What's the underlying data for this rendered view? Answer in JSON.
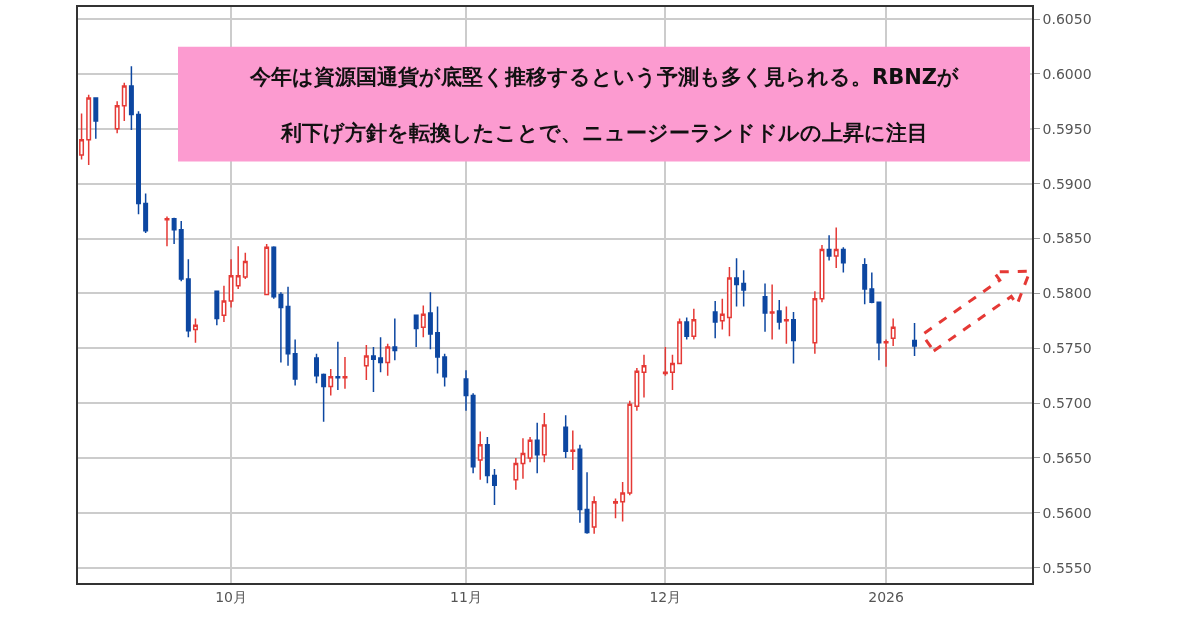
{
  "chart_data": {
    "type": "candlestick",
    "x": [
      "2025-09-10",
      "2025-09-11",
      "2025-09-12",
      "2025-09-15",
      "2025-09-16",
      "2025-09-17",
      "2025-09-18",
      "2025-09-19",
      "2025-09-22",
      "2025-09-23",
      "2025-09-24",
      "2025-09-25",
      "2025-09-26",
      "2025-09-29",
      "2025-09-30",
      "2025-10-01",
      "2025-10-02",
      "2025-10-03",
      "2025-10-06",
      "2025-10-07",
      "2025-10-08",
      "2025-10-09",
      "2025-10-10",
      "2025-10-13",
      "2025-10-14",
      "2025-10-15",
      "2025-10-16",
      "2025-10-17",
      "2025-10-20",
      "2025-10-21",
      "2025-10-22",
      "2025-10-23",
      "2025-10-24",
      "2025-10-27",
      "2025-10-28",
      "2025-10-29",
      "2025-10-30",
      "2025-10-31",
      "2025-11-03",
      "2025-11-04",
      "2025-11-05",
      "2025-11-06",
      "2025-11-07",
      "2025-11-10",
      "2025-11-11",
      "2025-11-12",
      "2025-11-13",
      "2025-11-14",
      "2025-11-17",
      "2025-11-18",
      "2025-11-19",
      "2025-11-20",
      "2025-11-21",
      "2025-11-24",
      "2025-11-25",
      "2025-11-26",
      "2025-11-27",
      "2025-11-28",
      "2025-12-01",
      "2025-12-02",
      "2025-12-03",
      "2025-12-04",
      "2025-12-05",
      "2025-12-08",
      "2025-12-09",
      "2025-12-10",
      "2025-12-11",
      "2025-12-12",
      "2025-12-15",
      "2025-12-16",
      "2025-12-17",
      "2025-12-18",
      "2025-12-19",
      "2025-12-22",
      "2025-12-23",
      "2025-12-24",
      "2025-12-25",
      "2025-12-26",
      "2025-12-29",
      "2025-12-30",
      "2025-12-31",
      "2026-01-01",
      "2026-01-02",
      "2026-01-05"
    ],
    "ohlc": [
      [
        0.5926,
        0.5964,
        0.5922,
        0.594
      ],
      [
        0.594,
        0.5981,
        0.5917,
        0.5978
      ],
      [
        0.5978,
        0.5978,
        0.5941,
        0.5957
      ],
      [
        0.595,
        0.5975,
        0.5946,
        0.5971
      ],
      [
        0.5971,
        0.5992,
        0.5957,
        0.5989
      ],
      [
        0.5989,
        0.6007,
        0.5949,
        0.5963
      ],
      [
        0.5963,
        0.5966,
        0.5872,
        0.5882
      ],
      [
        0.5882,
        0.5891,
        0.5855,
        0.5857
      ],
      [
        0.5867,
        0.587,
        0.5843,
        0.5868
      ],
      [
        0.5868,
        0.5869,
        0.5845,
        0.5858
      ],
      [
        0.5858,
        0.5866,
        0.5811,
        0.5813
      ],
      [
        0.5813,
        0.5831,
        0.576,
        0.5766
      ],
      [
        0.5767,
        0.5777,
        0.5755,
        0.5771
      ],
      [
        0.5802,
        0.5802,
        0.5771,
        0.5777
      ],
      [
        0.578,
        0.5807,
        0.5774,
        0.5793
      ],
      [
        0.5793,
        0.5831,
        0.5787,
        0.5816
      ],
      [
        0.5807,
        0.5843,
        0.5804,
        0.5816
      ],
      [
        0.5815,
        0.5837,
        0.5813,
        0.5829
      ],
      [
        0.5799,
        0.5845,
        0.5799,
        0.5842
      ],
      [
        0.5842,
        0.5843,
        0.5795,
        0.5797
      ],
      [
        0.5799,
        0.5801,
        0.5737,
        0.5787
      ],
      [
        0.5788,
        0.5806,
        0.5734,
        0.5745
      ],
      [
        0.5745,
        0.5758,
        0.5716,
        0.5722
      ],
      [
        0.5741,
        0.5745,
        0.5718,
        0.5725
      ],
      [
        0.5726,
        0.5727,
        0.5683,
        0.5715
      ],
      [
        0.5715,
        0.5731,
        0.5707,
        0.5724
      ],
      [
        0.5724,
        0.5756,
        0.5712,
        0.5723
      ],
      [
        0.5723,
        0.5742,
        0.5713,
        0.5724
      ],
      [
        0.5734,
        0.5753,
        0.5721,
        0.5743
      ],
      [
        0.5743,
        0.5751,
        0.571,
        0.574
      ],
      [
        0.5741,
        0.576,
        0.5728,
        0.5737
      ],
      [
        0.5737,
        0.5754,
        0.5725,
        0.5751
      ],
      [
        0.5751,
        0.5777,
        0.5739,
        0.5748
      ],
      [
        0.578,
        0.578,
        0.5751,
        0.5768
      ],
      [
        0.5769,
        0.5789,
        0.576,
        0.5781
      ],
      [
        0.5782,
        0.5801,
        0.5749,
        0.5763
      ],
      [
        0.5764,
        0.5788,
        0.5727,
        0.5742
      ],
      [
        0.5742,
        0.5745,
        0.5715,
        0.5724
      ],
      [
        0.5722,
        0.573,
        0.5693,
        0.5707
      ],
      [
        0.5707,
        0.5709,
        0.5636,
        0.5642
      ],
      [
        0.5648,
        0.5674,
        0.563,
        0.5662
      ],
      [
        0.5662,
        0.5669,
        0.5627,
        0.5634
      ],
      [
        0.5634,
        0.564,
        0.5607,
        0.5625
      ],
      [
        0.563,
        0.565,
        0.5621,
        0.5645
      ],
      [
        0.5645,
        0.5668,
        0.5631,
        0.5654
      ],
      [
        0.565,
        0.5669,
        0.5646,
        0.5666
      ],
      [
        0.5666,
        0.5682,
        0.5636,
        0.5653
      ],
      [
        0.5653,
        0.5691,
        0.5646,
        0.568
      ],
      [
        0.5678,
        0.5689,
        0.565,
        0.5656
      ],
      [
        0.5656,
        0.5675,
        0.5639,
        0.5657
      ],
      [
        0.5658,
        0.5662,
        0.5591,
        0.5603
      ],
      [
        0.5603,
        0.5637,
        0.5581,
        0.5582
      ],
      [
        0.5587,
        0.5615,
        0.5581,
        0.561
      ],
      [
        0.5609,
        0.5613,
        0.5595,
        0.561
      ],
      [
        0.561,
        0.5628,
        0.5592,
        0.5618
      ],
      [
        0.5618,
        0.5702,
        0.5616,
        0.5699
      ],
      [
        0.5697,
        0.5732,
        0.5693,
        0.5729
      ],
      [
        0.5728,
        0.5744,
        0.5705,
        0.5734
      ],
      [
        0.5727,
        0.5751,
        0.5725,
        0.5728
      ],
      [
        0.5728,
        0.5744,
        0.5712,
        0.5736
      ],
      [
        0.5736,
        0.5777,
        0.5736,
        0.5774
      ],
      [
        0.5774,
        0.5778,
        0.5758,
        0.5761
      ],
      [
        0.5761,
        0.5786,
        0.5758,
        0.5776
      ],
      [
        0.5783,
        0.5793,
        0.5759,
        0.5774
      ],
      [
        0.5775,
        0.5795,
        0.5767,
        0.5781
      ],
      [
        0.5778,
        0.5824,
        0.5761,
        0.5814
      ],
      [
        0.5814,
        0.5832,
        0.5788,
        0.5808
      ],
      [
        0.5809,
        0.5821,
        0.5788,
        0.5803
      ],
      [
        0.5797,
        0.5809,
        0.5765,
        0.5782
      ],
      [
        0.5782,
        0.5808,
        0.5758,
        0.5783
      ],
      [
        0.5784,
        0.5794,
        0.5767,
        0.5774
      ],
      [
        0.5775,
        0.5788,
        0.5754,
        0.5776
      ],
      [
        0.5776,
        0.5783,
        0.5736,
        0.5757
      ],
      [
        0.5755,
        0.5802,
        0.5745,
        0.5795
      ],
      [
        0.5795,
        0.5844,
        0.5792,
        0.584
      ],
      [
        0.584,
        0.5853,
        0.583,
        0.5834
      ],
      [
        0.5834,
        0.586,
        0.5823,
        0.584
      ],
      [
        0.584,
        0.5842,
        0.5819,
        0.5828
      ],
      [
        0.5826,
        0.5832,
        0.579,
        0.5804
      ],
      [
        0.5804,
        0.5819,
        0.5791,
        0.5792
      ],
      [
        0.5792,
        0.5792,
        0.5739,
        0.5755
      ],
      [
        0.5755,
        0.5758,
        0.5733,
        0.5756
      ],
      [
        0.5759,
        0.5777,
        0.5752,
        0.5769
      ],
      [
        0.5757,
        0.5773,
        0.5743,
        0.5752
      ]
    ],
    "colors": [
      "#e53935",
      "#e53935",
      "#0d47a1",
      "#e53935",
      "#e53935",
      "#0d47a1",
      "#0d47a1",
      "#0d47a1",
      "#e53935",
      "#0d47a1",
      "#0d47a1",
      "#0d47a1",
      "#e53935",
      "#0d47a1",
      "#e53935",
      "#e53935",
      "#e53935",
      "#e53935",
      "#e53935",
      "#0d47a1",
      "#0d47a1",
      "#0d47a1",
      "#0d47a1",
      "#0d47a1",
      "#0d47a1",
      "#e53935",
      "#0d47a1",
      "#e53935",
      "#e53935",
      "#0d47a1",
      "#0d47a1",
      "#e53935",
      "#0d47a1",
      "#0d47a1",
      "#e53935",
      "#0d47a1",
      "#0d47a1",
      "#0d47a1",
      "#0d47a1",
      "#0d47a1",
      "#e53935",
      "#0d47a1",
      "#0d47a1",
      "#e53935",
      "#e53935",
      "#e53935",
      "#0d47a1",
      "#e53935",
      "#0d47a1",
      "#e53935",
      "#0d47a1",
      "#0d47a1",
      "#e53935",
      "#e53935",
      "#e53935",
      "#e53935",
      "#e53935",
      "#e53935",
      "#e53935",
      "#e53935",
      "#e53935",
      "#0d47a1",
      "#e53935",
      "#0d47a1",
      "#e53935",
      "#e53935",
      "#0d47a1",
      "#0d47a1",
      "#0d47a1",
      "#e53935",
      "#0d47a1",
      "#e53935",
      "#0d47a1",
      "#e53935",
      "#e53935",
      "#0d47a1",
      "#e53935",
      "#0d47a1",
      "#0d47a1",
      "#0d47a1",
      "#0d47a1",
      "#e53935",
      "#e53935",
      "#0d47a1"
    ],
    "xlim": [
      "2025-09-09T12:00",
      "2026-01-21T12:00"
    ],
    "xticks": [
      {
        "value": "2025-10-01",
        "label": "10月"
      },
      {
        "value": "2025-11-03",
        "label": "11月"
      },
      {
        "value": "2025-12-01",
        "label": "12月"
      },
      {
        "value": "2026-01-01",
        "label": "2026"
      }
    ],
    "ylim": [
      0.5536,
      0.6061
    ],
    "yticks": [
      {
        "value": 0.555,
        "label": "0.5550"
      },
      {
        "value": 0.56,
        "label": "0.5600"
      },
      {
        "value": 0.565,
        "label": "0.5650"
      },
      {
        "value": 0.57,
        "label": "0.5700"
      },
      {
        "value": 0.575,
        "label": "0.5750"
      },
      {
        "value": 0.58,
        "label": "0.5800"
      },
      {
        "value": 0.585,
        "label": "0.5850"
      },
      {
        "value": 0.59,
        "label": "0.5900"
      },
      {
        "value": 0.595,
        "label": "0.5950"
      },
      {
        "value": 0.6,
        "label": "0.6000"
      },
      {
        "value": 0.605,
        "label": "0.6050"
      }
    ],
    "grid": true,
    "annotations": [
      "今年は資源国通貨が底堅く推移するという予測も多く見られる。RBNZが",
      "利下げ方針を転換したことで、ニュージーランドドルの上昇に注目"
    ]
  }
}
